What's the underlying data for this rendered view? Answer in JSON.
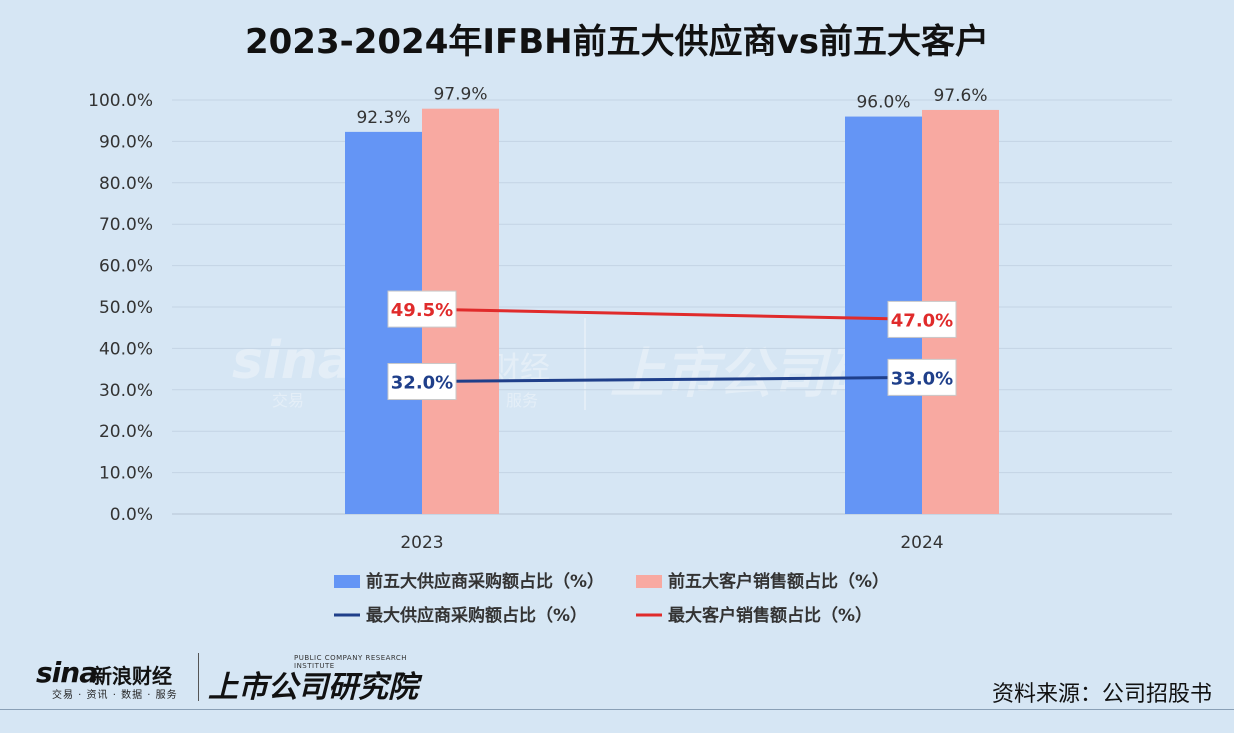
{
  "title": "2023-2024年IFBH前五大供应商vs前五大客户",
  "source": "资料来源：公司招股书",
  "logos": {
    "sina_word": "sina",
    "sina_cn": "新浪财经",
    "sina_sub": "交易 · 资讯 · 数据 · 服务",
    "inst_en": "PUBLIC COMPANY RESEARCH INSTITUTE",
    "inst_cn": "上市公司研究院"
  },
  "colors": {
    "bar1": "#6495f5",
    "bar2": "#f8a9a1",
    "line1": "#1f3f8a",
    "line2": "#e02b2b",
    "grid": "#c4d4e4"
  },
  "chart_data": {
    "type": "bar",
    "categories": [
      "2023",
      "2024"
    ],
    "ylim": [
      0,
      100
    ],
    "yticks": [
      "0.0%",
      "10.0%",
      "20.0%",
      "30.0%",
      "40.0%",
      "50.0%",
      "60.0%",
      "70.0%",
      "80.0%",
      "90.0%",
      "100.0%"
    ],
    "series": [
      {
        "name": "前五大供应商采购额占比（%）",
        "kind": "bar",
        "values": [
          92.3,
          96.0
        ],
        "labels": [
          "92.3%",
          "96.0%"
        ]
      },
      {
        "name": "前五大客户销售额占比（%）",
        "kind": "bar",
        "values": [
          97.9,
          97.6
        ],
        "labels": [
          "97.9%",
          "97.6%"
        ]
      },
      {
        "name": "最大供应商采购额占比（%）",
        "kind": "line",
        "values": [
          32.0,
          33.0
        ],
        "labels": [
          "32.0%",
          "33.0%"
        ]
      },
      {
        "name": "最大客户销售额占比（%）",
        "kind": "line",
        "values": [
          49.5,
          47.0
        ],
        "labels": [
          "49.5%",
          "47.0%"
        ]
      }
    ],
    "legend_position": "bottom",
    "grid": true
  }
}
